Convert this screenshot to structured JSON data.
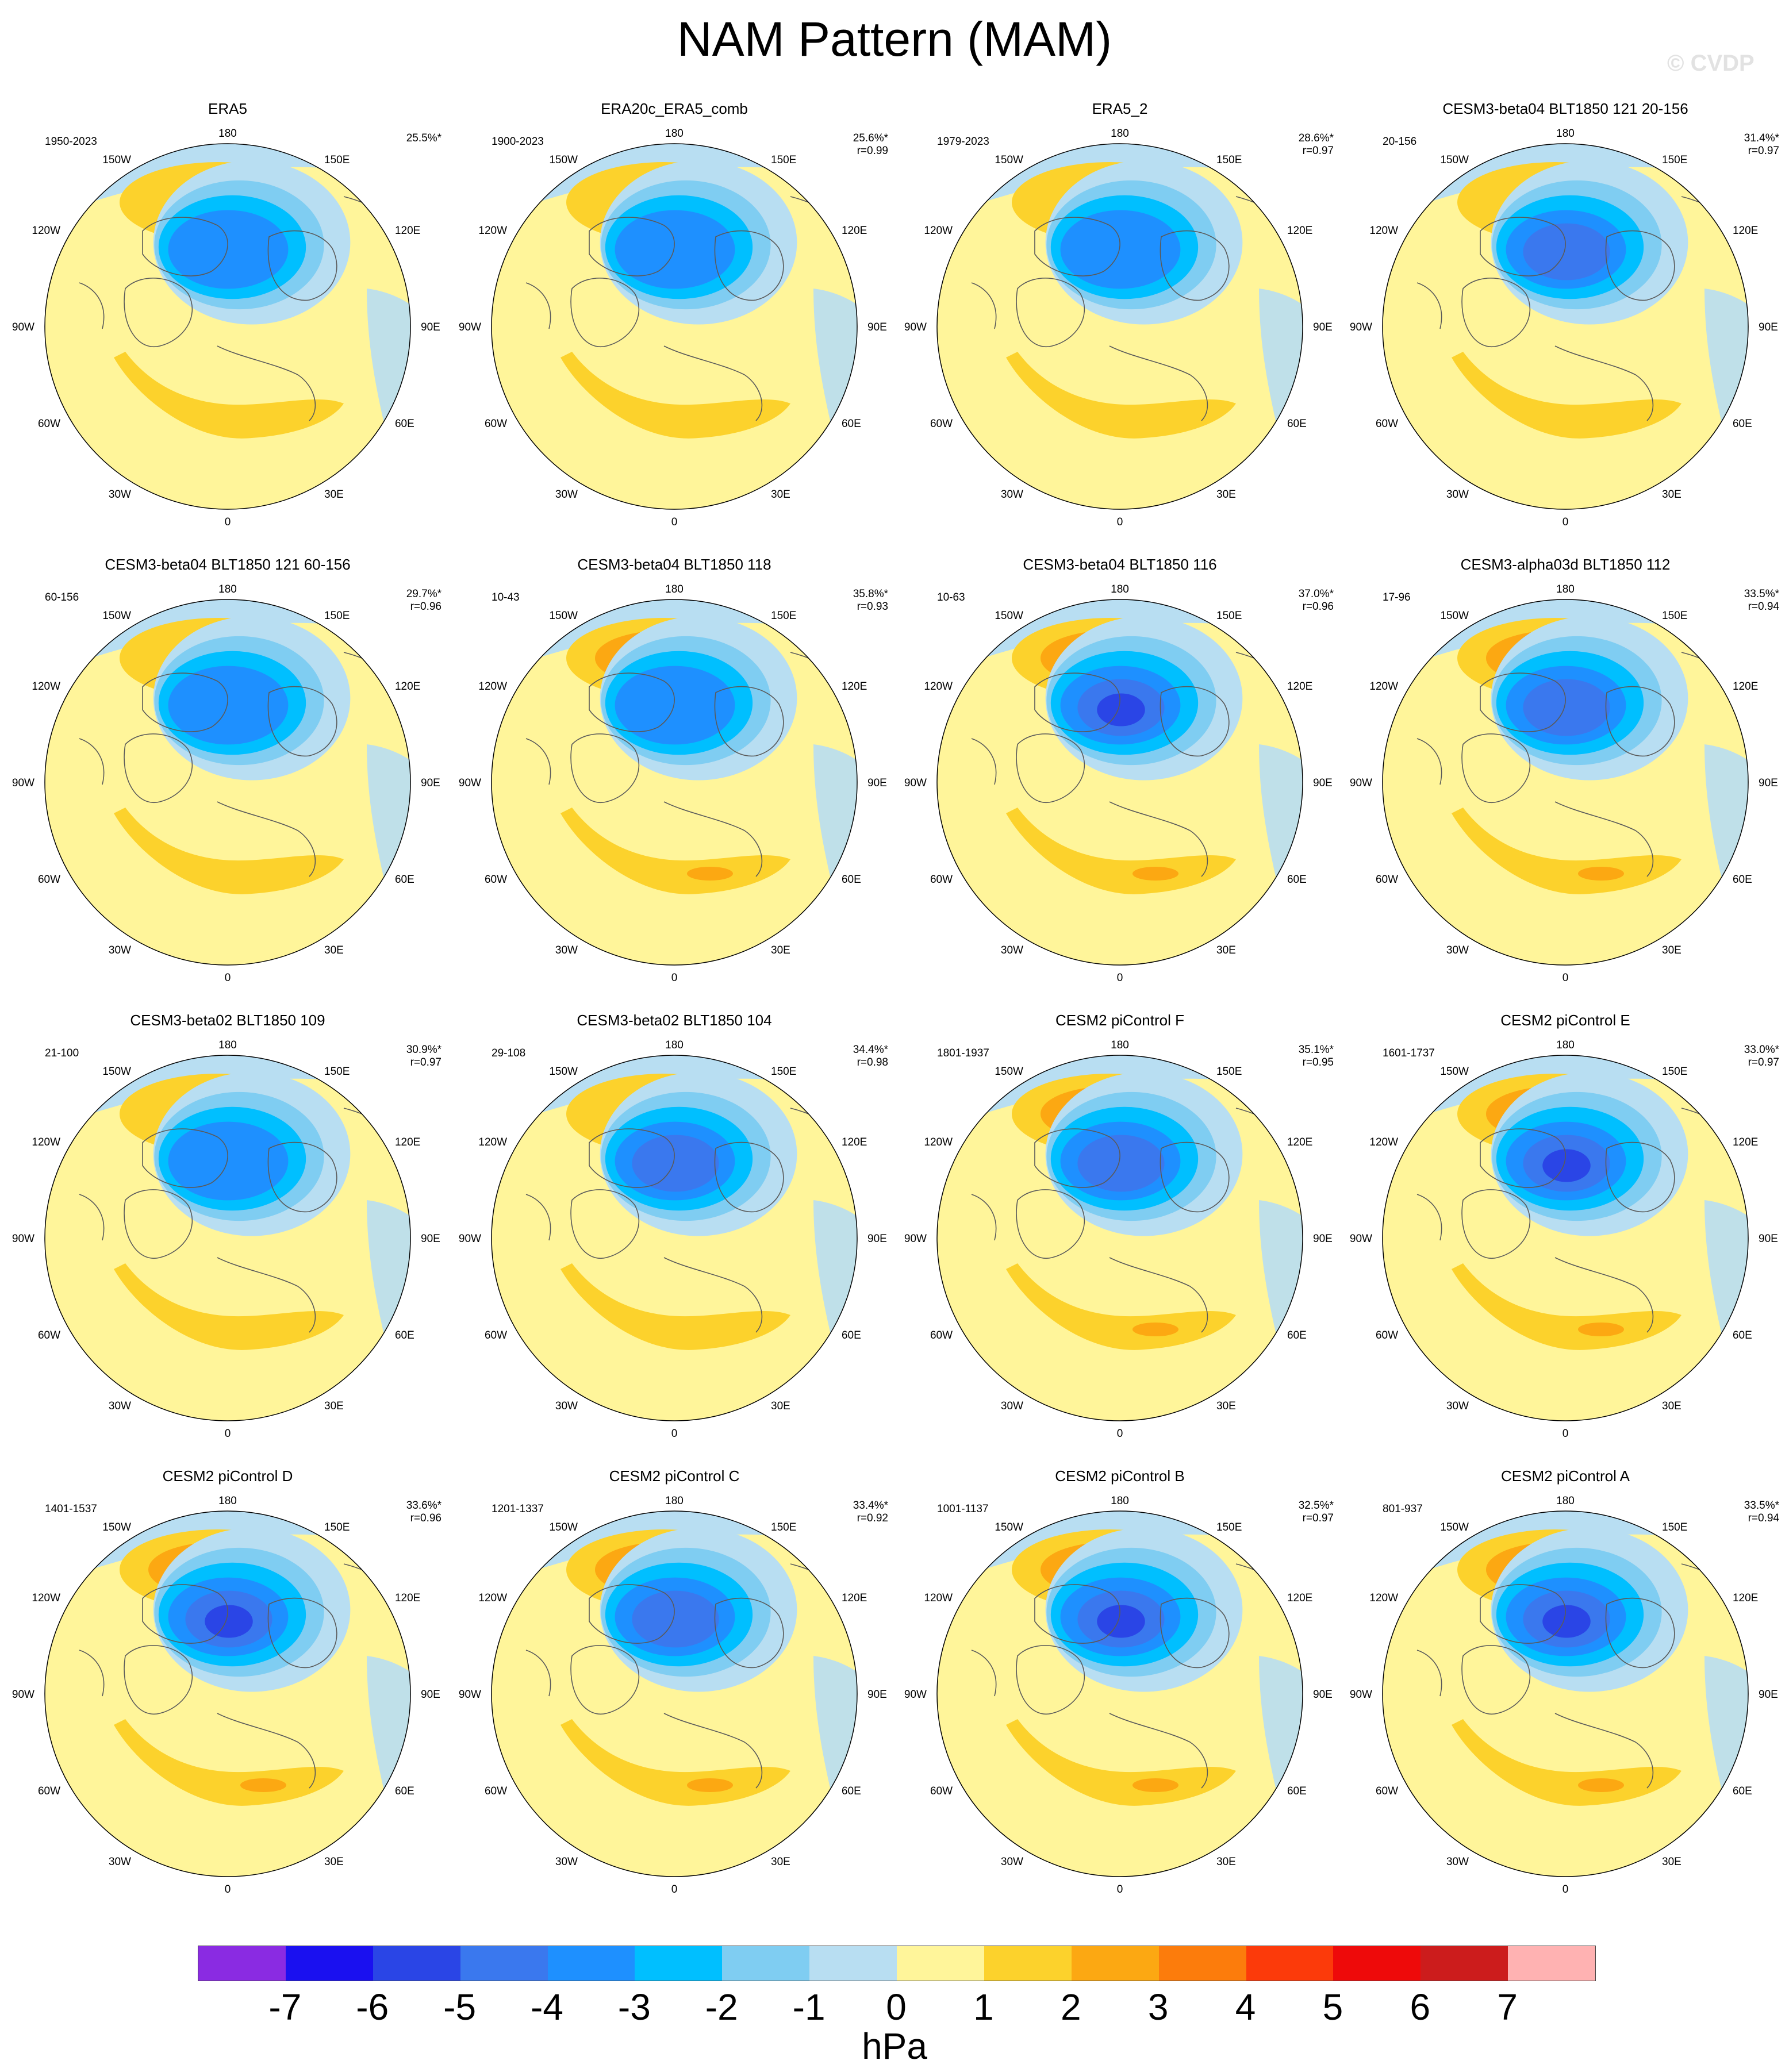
{
  "figure": {
    "title": "NAM Pattern (MAM)",
    "watermark": "© CVDP"
  },
  "longitude_labels": {
    "lon_180": "180",
    "lon_150e": "150E",
    "lon_120e": "120E",
    "lon_90e": "90E",
    "lon_60e": "60E",
    "lon_30e": "30E",
    "lon_0": "0",
    "lon_30w": "30W",
    "lon_60w": "60W",
    "lon_90w": "90W",
    "lon_120w": "120W",
    "lon_150w": "150W"
  },
  "panels": [
    {
      "title": "ERA5",
      "years": "1950-2023",
      "pct": "25.5%*",
      "r": "",
      "pos_max": 1,
      "neg_min": -4
    },
    {
      "title": "ERA20c_ERA5_comb",
      "years": "1900-2023",
      "pct": "25.6%*",
      "r": "r=0.99",
      "pos_max": 1,
      "neg_min": -4
    },
    {
      "title": "ERA5_2",
      "years": "1979-2023",
      "pct": "28.6%*",
      "r": "r=0.97",
      "pos_max": 1,
      "neg_min": -4
    },
    {
      "title": "CESM3-beta04 BLT1850 121 20-156",
      "years": "20-156",
      "pct": "31.4%*",
      "r": "r=0.97",
      "pos_max": 1,
      "neg_min": -5
    },
    {
      "title": "CESM3-beta04 BLT1850 121 60-156",
      "years": "60-156",
      "pct": "29.7%*",
      "r": "r=0.96",
      "pos_max": 1,
      "neg_min": -4
    },
    {
      "title": "CESM3-beta04 BLT1850 118",
      "years": "10-43",
      "pct": "35.8%*",
      "r": "r=0.93",
      "pos_max": 3,
      "neg_min": -4
    },
    {
      "title": "CESM3-beta04 BLT1850 116",
      "years": "10-63",
      "pct": "37.0%*",
      "r": "r=0.96",
      "pos_max": 2,
      "neg_min": -6
    },
    {
      "title": "CESM3-alpha03d BLT1850 112",
      "years": "17-96",
      "pct": "33.5%*",
      "r": "r=0.94",
      "pos_max": 2,
      "neg_min": -5
    },
    {
      "title": "CESM3-beta02 BLT1850 109",
      "years": "21-100",
      "pct": "30.9%*",
      "r": "r=0.97",
      "pos_max": 1,
      "neg_min": -4
    },
    {
      "title": "CESM3-beta02 BLT1850 104",
      "years": "29-108",
      "pct": "34.4%*",
      "r": "r=0.98",
      "pos_max": 1,
      "neg_min": -5
    },
    {
      "title": "CESM2 piControl F",
      "years": "1801-1937",
      "pct": "35.1%*",
      "r": "r=0.95",
      "pos_max": 3,
      "neg_min": -5
    },
    {
      "title": "CESM2 piControl E",
      "years": "1601-1737",
      "pct": "33.0%*",
      "r": "r=0.97",
      "pos_max": 3,
      "neg_min": -6
    },
    {
      "title": "CESM2 piControl D",
      "years": "1401-1537",
      "pct": "33.6%*",
      "r": "r=0.96",
      "pos_max": 3,
      "neg_min": -6
    },
    {
      "title": "CESM2 piControl C",
      "years": "1201-1337",
      "pct": "33.4%*",
      "r": "r=0.92",
      "pos_max": 3,
      "neg_min": -5
    },
    {
      "title": "CESM2 piControl B",
      "years": "1001-1137",
      "pct": "32.5%*",
      "r": "r=0.97",
      "pos_max": 2,
      "neg_min": -6
    },
    {
      "title": "CESM2 piControl A",
      "years": "801-937",
      "pct": "33.5%*",
      "r": "r=0.94",
      "pos_max": 2,
      "neg_min": -6
    }
  ],
  "colorbar": {
    "colors": [
      "#8a2be2",
      "#1a10f0",
      "#2a45e6",
      "#3a78ee",
      "#1e90ff",
      "#00bfff",
      "#7fcdf2",
      "#b8def2",
      "#fff59a",
      "#fcd22c",
      "#fca812",
      "#fc7c0c",
      "#fc3a0a",
      "#ee0a0a",
      "#cc1c1c",
      "#ffb2b2"
    ],
    "labels": [
      "-7",
      "-6",
      "-5",
      "-4",
      "-3",
      "-2",
      "-1",
      "0",
      "1",
      "2",
      "3",
      "4",
      "5",
      "6",
      "7"
    ],
    "unit": "hPa"
  }
}
